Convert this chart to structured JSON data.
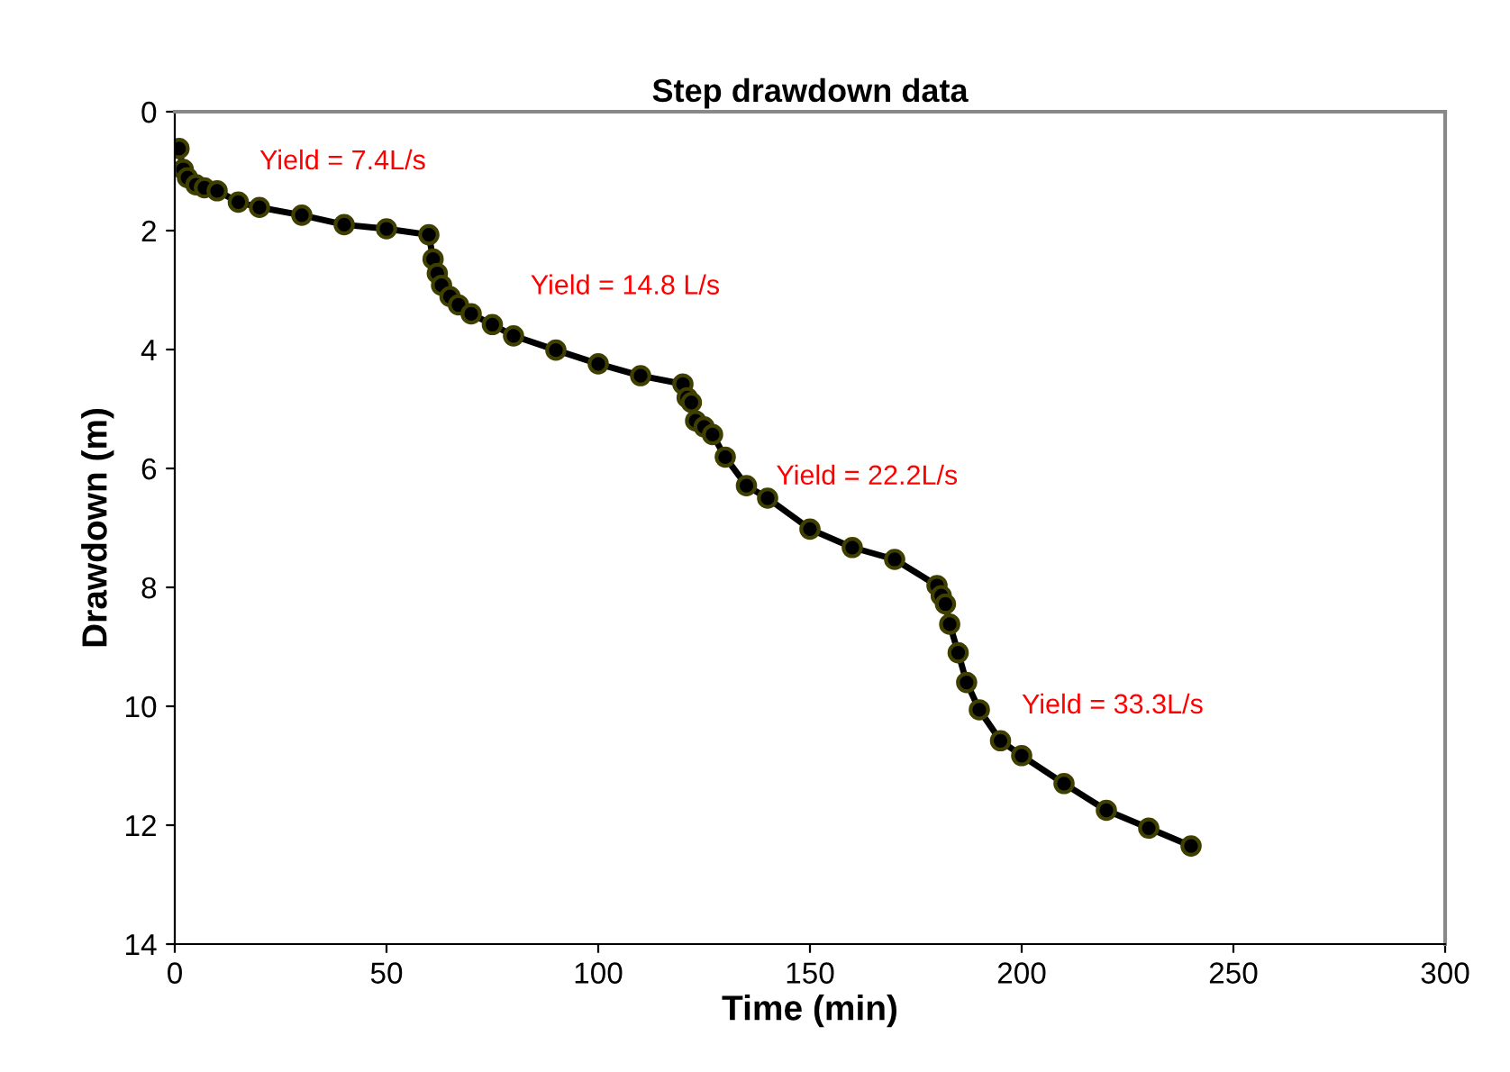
{
  "chart_data": {
    "type": "line",
    "title": "Step drawdown data",
    "xlabel": "Time (min)",
    "ylabel": "Drawdown (m)",
    "annotations": [
      "Yield = 7.4L/s",
      "Yield = 14.8 L/s",
      "Yield = 22.2L/s",
      "Yield = 33.3L/s"
    ],
    "series": [
      {
        "color": "#000000",
        "x": [
          1,
          2,
          3,
          5,
          7,
          10,
          15,
          20,
          30,
          40,
          50,
          60,
          61,
          62,
          63,
          65,
          67,
          70,
          75,
          80,
          90,
          100,
          110,
          120,
          121,
          122,
          123,
          125,
          127,
          130,
          135,
          140,
          150,
          160,
          170,
          180,
          181,
          182,
          183,
          185,
          187,
          190,
          195,
          200,
          210,
          220,
          230,
          240
        ],
        "values": [
          0.62,
          0.97,
          1.11,
          1.23,
          1.28,
          1.33,
          1.52,
          1.61,
          1.74,
          1.9,
          1.97,
          2.07,
          2.48,
          2.72,
          2.92,
          3.11,
          3.25,
          3.4,
          3.58,
          3.77,
          4.01,
          4.24,
          4.44,
          4.58,
          4.81,
          4.89,
          5.2,
          5.3,
          5.43,
          5.81,
          6.29,
          6.5,
          7.02,
          7.33,
          7.53,
          7.97,
          8.14,
          8.28,
          8.62,
          9.1,
          9.6,
          10.06,
          10.58,
          10.83,
          11.3,
          11.75,
          12.05,
          12.35
        ]
      }
    ],
    "marker": "circle",
    "line_style": "solid",
    "grid": false,
    "legend": false,
    "xlim": [
      0,
      300
    ],
    "xticks": [
      0,
      50,
      100,
      150,
      200,
      250,
      300
    ],
    "ylim": [
      14,
      0
    ],
    "yticks": [
      0,
      2,
      4,
      6,
      8,
      10,
      12,
      14
    ]
  }
}
